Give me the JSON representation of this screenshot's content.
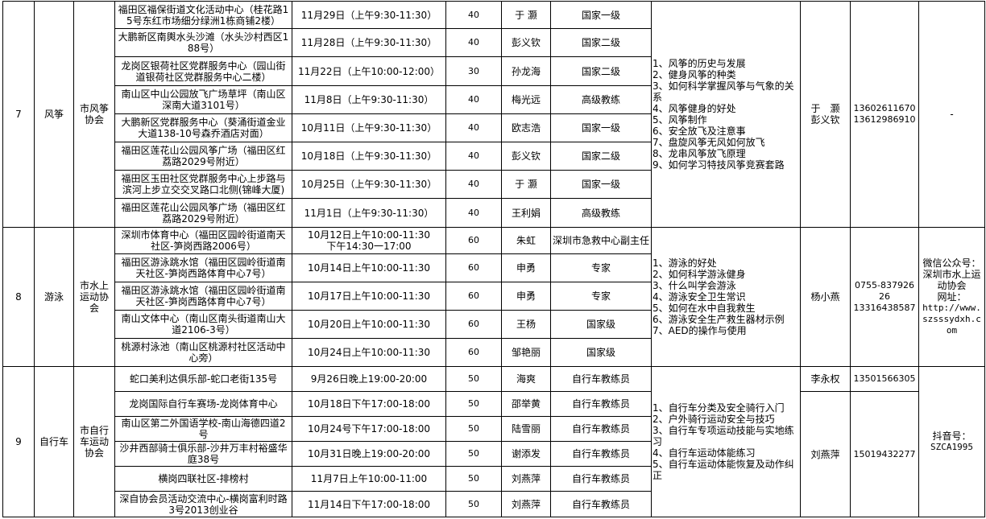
{
  "groups": [
    {
      "no": "7",
      "sport": "风筝",
      "org": "市风筝协会",
      "content": [
        "1、风筝的历史与发展",
        "2、健身风筝的种类",
        "3、如何科学掌握风筝与气象的关系",
        "4、风筝健身的好处",
        "5、风筝制作",
        "6、安全放飞及注意事",
        "7、盘旋风筝无风如何放飞",
        "8、龙串风筝放飞原理",
        "9、如何学习特技风筝竞赛套路"
      ],
      "contacts": [
        {
          "name": "于　灏\n彭义钦",
          "phone": "13602611670\n13612986910",
          "span": 8
        }
      ],
      "remarks": [
        "-"
      ],
      "sessions": [
        {
          "location": "福田区福保街道文化活动中心（桂花路15号东红市场细分绿洲1栋商铺2楼）",
          "time": "11月29日（上午9:30-11:30）",
          "capacity": "40",
          "instructor": "于 灏",
          "level": "国家一级"
        },
        {
          "location": "大鹏新区南輿水头沙滩（水头沙村西区188号）",
          "time": "11月28日（上午9:30-11:30）",
          "capacity": "40",
          "instructor": "彭义钦",
          "level": "国家二级"
        },
        {
          "location": "龙岗区银荷社区党群服务中心（园山街道银荷社区党群服务中心二楼）",
          "time": "11月22日（上午10:00-12:00）",
          "capacity": "30",
          "instructor": "孙龙海",
          "level": "国家二级"
        },
        {
          "location": "南山区中山公园放飞广场草坪（南山区深南大道3101号）",
          "time": "11月8日（上午9:30-11:30）",
          "capacity": "40",
          "instructor": "梅光远",
          "level": "高级教练"
        },
        {
          "location": "大鹏新区党群服务中心（葵涌街道金业大道138-10号森乔酒店对面）",
          "time": "10月11日（上午9:30-11:30）",
          "capacity": "40",
          "instructor": "欧志浩",
          "level": "国家一级"
        },
        {
          "location": "福田区莲花山公园风筝广场（福田区红荔路2029号附近）",
          "time": "10月18日（上午9:30-11:30）",
          "capacity": "40",
          "instructor": "彭义钦",
          "level": "国家二级"
        },
        {
          "location": "福田区玉田社区党群服务中心上步路与滨河上步立交交叉路口北侧(锦峰大厦)",
          "time": "10月25日（上午9:30-11:30）",
          "capacity": "40",
          "instructor": "于 灏",
          "level": "国家一级"
        },
        {
          "location": "福田区莲花山公园风筝广场（福田区红荔路2029号附近）",
          "time": "11月1日（上午9:30-11:30）",
          "capacity": "40",
          "instructor": "王利娟",
          "level": "高级教练"
        }
      ]
    },
    {
      "no": "8",
      "sport": "游泳",
      "org": "市水上运动协会",
      "content": [
        "1、游泳的好处",
        "2、如何科学游泳健身",
        "3、什么叫学会游泳",
        "4、游泳安全卫生常识",
        "5、如何在水中自我救生",
        "6、游泳安全生产救生器材示例",
        "7、AED的操作与使用"
      ],
      "contacts": [
        {
          "name": "杨小燕",
          "phone": "0755-83792626\n13316438587",
          "span": 5
        }
      ],
      "remarks": [
        "微信公众号：",
        "深圳市水上运动协会",
        "网址：",
        "http://www.szsssydxh.com"
      ],
      "sessions": [
        {
          "location": "深圳市体育中心（福田区园岭街道南天社区-笋岗西路2006号）",
          "time": "10月12日上午10:00-11:30\n下午14:30一17:00",
          "capacity": "60",
          "instructor": "朱虹",
          "level": "深圳市急救中心副主任"
        },
        {
          "location": "福田区游泳跳水馆（福田区园岭街道南天社区-笋岗西路体育中心7号）",
          "time": "10月14日上午10:00-11:30",
          "capacity": "60",
          "instructor": "申勇",
          "level": "专家"
        },
        {
          "location": "福田区游泳跳水馆（福田区园岭街道南天社区-笋岗西路体育中心7号）",
          "time": "10月17日上午10:00-11:30",
          "capacity": "60",
          "instructor": "申勇",
          "level": "专家"
        },
        {
          "location": "南山文体中心（南山区南头街道南山大道2106-3号）",
          "time": "10月20日上午10:00-11:30",
          "capacity": "60",
          "instructor": "王杨",
          "level": "国家级"
        },
        {
          "location": "桃源村泳池（南山区桃源村社区活动中心旁）",
          "time": "10月24日上午10:00-11:30",
          "capacity": "60",
          "instructor": "邹艳丽",
          "level": "国家级"
        }
      ]
    },
    {
      "no": "9",
      "sport": "自行车",
      "org": "市自行车运动协会",
      "content": [
        "1、自行车分类及安全骑行入门",
        "2、户外骑行运动安全与技巧",
        "3、自行车专项运动技能与实地练习",
        "4、自行车运动体能练习",
        "5、自行车运动体能恢复及动作纠正"
      ],
      "contacts": [
        {
          "name": "李永权",
          "phone": "13501566305",
          "span": 1
        },
        {
          "name": "刘燕萍",
          "phone": "15019432277",
          "span": 5
        }
      ],
      "remarks": [
        "抖音号：",
        "SZCA1995"
      ],
      "sessions": [
        {
          "location": "蛇口美利达俱乐部-蛇口老街135号",
          "time": "9月26日晚上19:00-20:00",
          "capacity": "50",
          "instructor": "海爽",
          "level": "自行车教练员"
        },
        {
          "location": "龙岗国际自行车赛场-龙岗体育中心",
          "time": "10月18日下午17:00-18:00",
          "capacity": "50",
          "instructor": "邵举黄",
          "level": "自行车教练员"
        },
        {
          "location": "南山区第二外国语学校-南山海德四道2号",
          "time": "10月24号下午17:00-18:00",
          "capacity": "50",
          "instructor": "陆雪丽",
          "level": "自行车教练员"
        },
        {
          "location": "沙井西部骑士俱乐部-沙井万丰村裕盛华庭38号",
          "time": "10月31日晚上19:00-20:00",
          "capacity": "50",
          "instructor": "谢添发",
          "level": "自行车教练员"
        },
        {
          "location": "横岗四联社区-排榜村",
          "time": "11月7日上午10:00-11:00",
          "capacity": "50",
          "instructor": "刘燕萍",
          "level": "自行车教练员"
        },
        {
          "location": "深自协会员活动交流中心-横岗富利时路3号2013创业谷",
          "time": "11月14日下午17:00-18:00",
          "capacity": "50",
          "instructor": "刘燕萍",
          "level": "自行车教练员"
        }
      ]
    }
  ]
}
